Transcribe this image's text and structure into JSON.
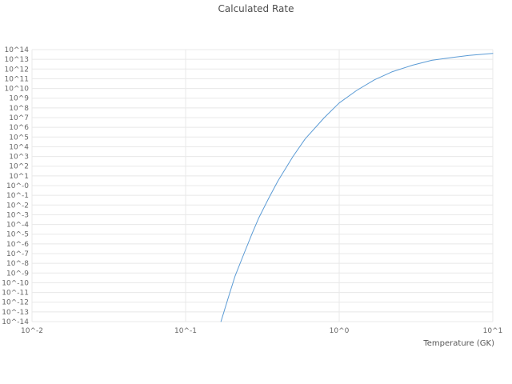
{
  "figure": {
    "title": "Calculated Rate"
  },
  "chart_data": {
    "type": "line",
    "title": "Calculated Rate",
    "xlabel": "Temperature (GK)",
    "ylabel": "",
    "x_scale": "log",
    "y_scale": "log",
    "xlim": [
      0.01,
      10
    ],
    "ylim": [
      1e-14,
      100000000000000.0
    ],
    "grid": true,
    "legend": "none",
    "x_tick_labels": [
      "10^-2",
      "10^-1",
      "10^0",
      "10^1"
    ],
    "y_tick_labels": [
      "10^14",
      "10^13",
      "10^12",
      "10^11",
      "10^10",
      "10^9",
      "10^8",
      "10^7",
      "10^6",
      "10^5",
      "10^4",
      "10^3",
      "10^2",
      "10^1",
      "10^-0",
      "10^-1",
      "10^-2",
      "10^-3",
      "10^-4",
      "10^-5",
      "10^-6",
      "10^-7",
      "10^-8",
      "10^-9",
      "10^-10",
      "10^-11",
      "10^-12",
      "10^-13",
      "10^-14"
    ],
    "series": [
      {
        "name": "calculated-rate",
        "color": "#5b9bd5",
        "points": [
          {
            "T": 0.17,
            "rate": 1e-14
          },
          {
            "T": 0.19,
            "rate": 3.2e-12
          },
          {
            "T": 0.21,
            "rate": 5e-10
          },
          {
            "T": 0.24,
            "rate": 1e-07
          },
          {
            "T": 0.27,
            "rate": 1e-05
          },
          {
            "T": 0.3,
            "rate": 0.0005
          },
          {
            "T": 0.35,
            "rate": 0.063
          },
          {
            "T": 0.4,
            "rate": 3.2
          },
          {
            "T": 0.5,
            "rate": 1000
          },
          {
            "T": 0.6,
            "rate": 63000
          },
          {
            "T": 0.8,
            "rate": 10000000.0
          },
          {
            "T": 1.0,
            "rate": 320000000.0
          },
          {
            "T": 1.3,
            "rate": 6300000000.0
          },
          {
            "T": 1.7,
            "rate": 79000000000.0
          },
          {
            "T": 2.2,
            "rate": 500000000000.0
          },
          {
            "T": 3.0,
            "rate": 2500000000000.0
          },
          {
            "T": 4.0,
            "rate": 7900000000000.0
          },
          {
            "T": 5.5,
            "rate": 16000000000000.0
          },
          {
            "T": 7.0,
            "rate": 25000000000000.0
          },
          {
            "T": 9.0,
            "rate": 35000000000000.0
          },
          {
            "T": 10.0,
            "rate": 40000000000000.0
          }
        ]
      }
    ],
    "colors": {
      "grid": "#e8e8e8",
      "tick_text": "#666666",
      "title_text": "#4d4d4d",
      "line": "#5b9bd5",
      "background": "#ffffff"
    }
  }
}
